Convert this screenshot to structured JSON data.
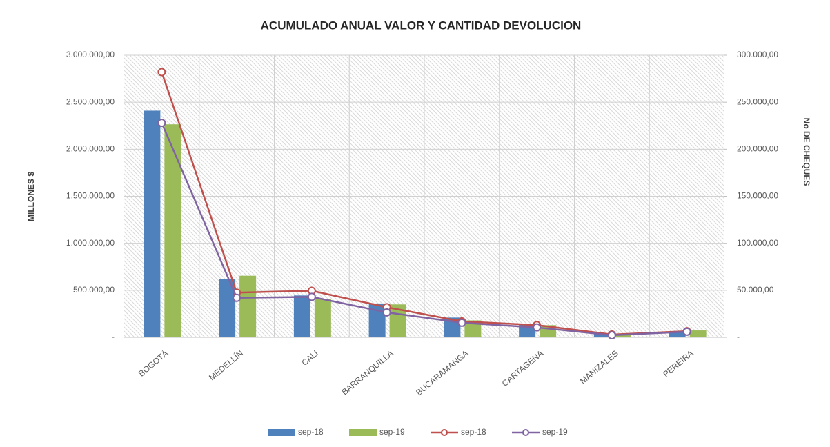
{
  "chart_data": {
    "type": "bar",
    "title": "ACUMULADO ANUAL VALOR Y CANTIDAD DEVOLUCION",
    "y_label": "MILLONES $",
    "y2_label": "No DE CHEQUES",
    "categories": [
      "BOGOTÁ",
      "MEDELLÍN",
      "CALI",
      "BARRANQUILLA",
      "BUCARAMANGA",
      "CARTAGENA",
      "MANIZALES",
      "PEREIRA"
    ],
    "series": [
      {
        "name": "sep-18",
        "type": "bar",
        "axis": "y",
        "color": "#4f81bd",
        "values": [
          2410000,
          620000,
          445000,
          360000,
          210000,
          140000,
          35000,
          65000
        ]
      },
      {
        "name": "sep-19",
        "type": "bar",
        "axis": "y",
        "color": "#9bbb59",
        "values": [
          2265000,
          655000,
          410000,
          350000,
          180000,
          130000,
          30000,
          73000
        ]
      },
      {
        "name": "sep-18",
        "type": "line",
        "axis": "y2",
        "color": "#c0504d",
        "values": [
          282000,
          47500,
          49500,
          32000,
          17000,
          13000,
          3000,
          6500
        ]
      },
      {
        "name": "sep-19",
        "type": "line",
        "axis": "y2",
        "color": "#8064a2",
        "values": [
          228000,
          42000,
          43000,
          26500,
          15500,
          10500,
          2200,
          6000
        ]
      }
    ],
    "ylim": [
      0,
      3000000
    ],
    "yticks": [
      {
        "value": 0,
        "label": "-"
      },
      {
        "value": 500000,
        "label": "500.000,00"
      },
      {
        "value": 1000000,
        "label": "1.000.000,00"
      },
      {
        "value": 1500000,
        "label": "1.500.000,00"
      },
      {
        "value": 2000000,
        "label": "2.000.000,00"
      },
      {
        "value": 2500000,
        "label": "2.500.000,00"
      },
      {
        "value": 3000000,
        "label": "3.000.000,00"
      }
    ],
    "y2lim": [
      0,
      300000
    ],
    "y2ticks": [
      {
        "value": 0,
        "label": "-"
      },
      {
        "value": 50000,
        "label": "50.000,00"
      },
      {
        "value": 100000,
        "label": "100.000,00"
      },
      {
        "value": 150000,
        "label": "150.000,00"
      },
      {
        "value": 200000,
        "label": "200.000,00"
      },
      {
        "value": 250000,
        "label": "250.000,00"
      },
      {
        "value": 300000,
        "label": "300.000,00"
      }
    ],
    "grid": true,
    "legend": "bottom"
  }
}
